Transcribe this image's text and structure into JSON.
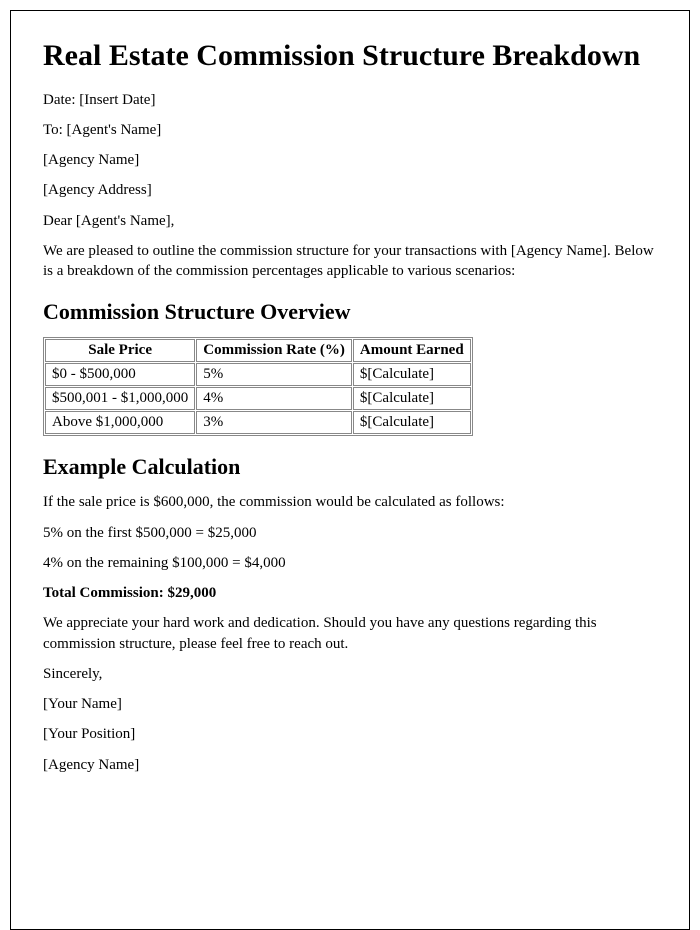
{
  "title": "Real Estate Commission Structure Breakdown",
  "meta": {
    "date": "Date: [Insert Date]",
    "to": "To: [Agent's Name]",
    "agency_name": "[Agency Name]",
    "agency_address": "[Agency Address]",
    "salutation": "Dear [Agent's Name],",
    "intro": "We are pleased to outline the commission structure for your transactions with [Agency Name]. Below is a breakdown of the commission percentages applicable to various scenarios:"
  },
  "section1_heading": "Commission Structure Overview",
  "table": {
    "headers": [
      "Sale Price",
      "Commission Rate (%)",
      "Amount Earned"
    ],
    "rows": [
      [
        "$0 - $500,000",
        "5%",
        "$[Calculate]"
      ],
      [
        "$500,001 - $1,000,000",
        "4%",
        "$[Calculate]"
      ],
      [
        "Above $1,000,000",
        "3%",
        "$[Calculate]"
      ]
    ]
  },
  "section2_heading": "Example Calculation",
  "example": {
    "intro": "If the sale price is $600,000, the commission would be calculated as follows:",
    "line1": "5% on the first $500,000 = $25,000",
    "line2": "4% on the remaining $100,000 = $4,000",
    "total": "Total Commission: $29,000"
  },
  "closing": {
    "thanks": "We appreciate your hard work and dedication. Should you have any questions regarding this commission structure, please feel free to reach out.",
    "signoff": "Sincerely,",
    "your_name": "[Your Name]",
    "your_position": "[Your Position]",
    "agency_name2": "[Agency Name]"
  }
}
